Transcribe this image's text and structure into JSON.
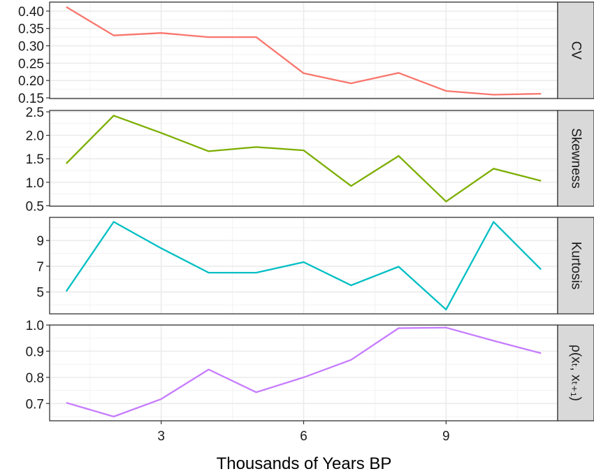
{
  "chart_data": {
    "type": "line",
    "layout": "faceted-vertical",
    "xlabel": "Thousands of Years BP",
    "xlim": [
      0.65,
      11.35
    ],
    "x_ticks": [
      3,
      6,
      9
    ],
    "x_minor": [
      1.5,
      4.5,
      7.5,
      10.5
    ],
    "x": [
      1,
      2,
      3,
      4,
      5,
      6,
      7,
      8,
      9,
      10,
      11
    ],
    "grid": true,
    "legend": "none",
    "series": [
      {
        "name": "CV",
        "color": "#F8766D",
        "values": [
          0.412,
          0.33,
          0.337,
          0.325,
          0.325,
          0.221,
          0.192,
          0.222,
          0.17,
          0.159,
          0.162
        ],
        "ylim": [
          0.148,
          0.426
        ],
        "y_ticks": [
          0.15,
          0.2,
          0.25,
          0.3,
          0.35,
          0.4
        ],
        "y_tick_labels": [
          "0.15",
          "0.20",
          "0.25",
          "0.30",
          "0.35",
          "0.40"
        ]
      },
      {
        "name": "Skewness",
        "color": "#7CAE00",
        "values": [
          1.4,
          2.42,
          2.05,
          1.66,
          1.75,
          1.68,
          0.92,
          1.56,
          0.59,
          1.29,
          1.03
        ],
        "ylim": [
          0.49,
          2.53
        ],
        "y_ticks": [
          0.5,
          1.0,
          1.5,
          2.0,
          2.5
        ],
        "y_tick_labels": [
          "0.5",
          "1.0",
          "1.5",
          "2.0",
          "2.5"
        ]
      },
      {
        "name": "Kurtosis",
        "color": "#00BFC4",
        "values": [
          5.05,
          10.45,
          8.4,
          6.5,
          6.5,
          7.32,
          5.52,
          6.97,
          3.63,
          10.45,
          6.75
        ],
        "ylim": [
          3.3,
          10.8
        ],
        "y_ticks": [
          5,
          7,
          9
        ],
        "y_tick_labels": [
          "5",
          "7",
          "9"
        ]
      },
      {
        "name": "ρ(xₜ, xₜ₊₁)",
        "color": "#C77CFF",
        "values": [
          0.703,
          0.65,
          0.717,
          0.83,
          0.743,
          0.8,
          0.867,
          0.988,
          0.99,
          0.94,
          0.892
        ],
        "ylim": [
          0.634,
          1.0
        ],
        "y_ticks": [
          0.7,
          0.8,
          0.9,
          1.0
        ],
        "y_tick_labels": [
          "0.7",
          "0.8",
          "0.9",
          "1.0"
        ]
      }
    ]
  }
}
